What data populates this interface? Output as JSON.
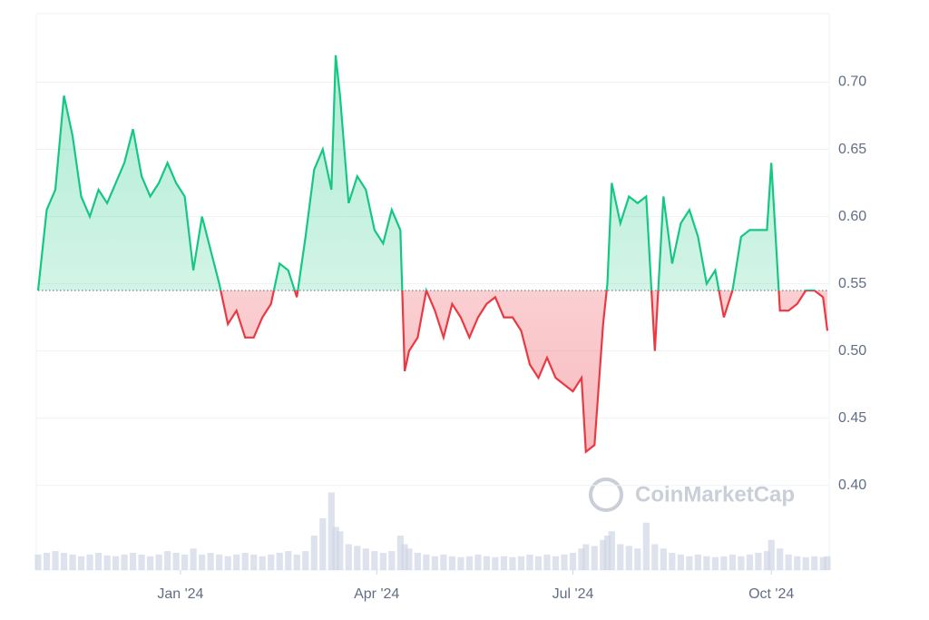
{
  "chart_data": {
    "type": "area-baseline",
    "watermark": "CoinMarketCap",
    "x": [
      0,
      4,
      8,
      12,
      16,
      20,
      24,
      28,
      32,
      36,
      40,
      44,
      48,
      52,
      56,
      60,
      64,
      68,
      72,
      76,
      80,
      84,
      88,
      92,
      96,
      100,
      104,
      108,
      112,
      116,
      120,
      124,
      128,
      132,
      136,
      138,
      140,
      144,
      148,
      152,
      156,
      160,
      164,
      168,
      170,
      172,
      176,
      180,
      184,
      188,
      192,
      196,
      200,
      204,
      208,
      212,
      216,
      220,
      224,
      228,
      232,
      236,
      240,
      244,
      248,
      252,
      254,
      258,
      262,
      264,
      266,
      270,
      274,
      278,
      282,
      286,
      290,
      294,
      298,
      302,
      306,
      310,
      314,
      318,
      322,
      326,
      330,
      334,
      338,
      340,
      344,
      348,
      352,
      356,
      360,
      364,
      366
    ],
    "values": [
      0.545,
      0.605,
      0.62,
      0.69,
      0.66,
      0.615,
      0.6,
      0.62,
      0.61,
      0.625,
      0.64,
      0.665,
      0.63,
      0.615,
      0.625,
      0.64,
      0.625,
      0.615,
      0.56,
      0.6,
      0.575,
      0.55,
      0.52,
      0.53,
      0.51,
      0.51,
      0.525,
      0.535,
      0.565,
      0.56,
      0.54,
      0.585,
      0.635,
      0.65,
      0.62,
      0.72,
      0.69,
      0.61,
      0.63,
      0.62,
      0.59,
      0.58,
      0.605,
      0.59,
      0.485,
      0.5,
      0.51,
      0.545,
      0.53,
      0.51,
      0.535,
      0.525,
      0.51,
      0.525,
      0.535,
      0.54,
      0.525,
      0.525,
      0.515,
      0.49,
      0.48,
      0.495,
      0.48,
      0.475,
      0.47,
      0.48,
      0.425,
      0.43,
      0.52,
      0.55,
      0.625,
      0.595,
      0.615,
      0.61,
      0.615,
      0.5,
      0.615,
      0.565,
      0.595,
      0.605,
      0.585,
      0.55,
      0.56,
      0.525,
      0.545,
      0.585,
      0.59,
      0.59,
      0.59,
      0.64,
      0.53,
      0.53,
      0.535,
      0.545,
      0.545,
      0.54,
      0.515
    ],
    "volume": [
      18,
      20,
      22,
      20,
      18,
      16,
      18,
      20,
      17,
      16,
      18,
      20,
      18,
      16,
      18,
      22,
      20,
      18,
      25,
      18,
      20,
      18,
      16,
      18,
      20,
      18,
      16,
      18,
      20,
      22,
      18,
      22,
      40,
      60,
      90,
      50,
      45,
      30,
      28,
      25,
      22,
      20,
      22,
      40,
      30,
      25,
      20,
      18,
      16,
      18,
      16,
      15,
      16,
      18,
      16,
      15,
      16,
      15,
      16,
      18,
      16,
      18,
      16,
      18,
      20,
      25,
      30,
      28,
      35,
      40,
      45,
      30,
      28,
      25,
      55,
      30,
      25,
      20,
      18,
      16,
      18,
      16,
      15,
      16,
      18,
      16,
      18,
      20,
      22,
      35,
      25,
      18,
      16,
      15,
      16,
      15,
      16
    ],
    "baseline": 0.545,
    "up_color": "#16c784",
    "down_color": "#ea3943",
    "volume_color": "#cfd6e4",
    "xlim": [
      0,
      366
    ],
    "xticks": [
      {
        "value": 66,
        "label": "Jan '24"
      },
      {
        "value": 157,
        "label": "Apr '24"
      },
      {
        "value": 248,
        "label": "Jul '24"
      },
      {
        "value": 340,
        "label": "Oct '24"
      }
    ],
    "ylim": [
      0.337,
      0.751
    ],
    "yticks": [
      {
        "value": 0.4,
        "label": "0.40"
      },
      {
        "value": 0.45,
        "label": "0.45"
      },
      {
        "value": 0.5,
        "label": "0.50"
      },
      {
        "value": 0.55,
        "label": "0.55"
      },
      {
        "value": 0.6,
        "label": "0.60"
      },
      {
        "value": 0.65,
        "label": "0.65"
      },
      {
        "value": 0.7,
        "label": "0.70"
      }
    ],
    "volume_ylim": [
      0,
      100
    ],
    "grid": true
  }
}
